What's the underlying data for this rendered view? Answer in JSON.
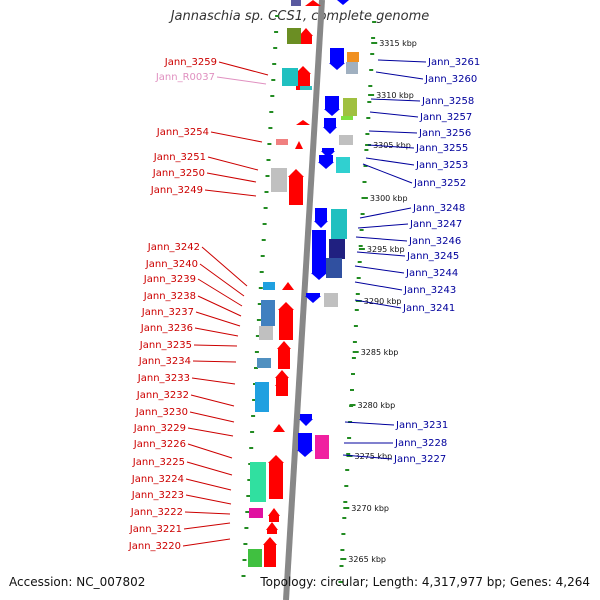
{
  "title": "Jannaschia sp. CCS1, complete genome",
  "footer": {
    "accession": "Accession: NC_007802",
    "summary": "Topology: circular; Length: 4,317,977 bp; Genes: 4,264"
  },
  "colors": {
    "left_label": "#cc0000",
    "right_label": "#00009c",
    "rna_label": "#e090c0",
    "forward_arrow": "#ff0000",
    "reverse_arrow": "#0000ff",
    "axis": "#888888",
    "tick": "#228b22"
  },
  "scale_labels": [
    "3315 kbp",
    "3310 kbp",
    "3305 kbp",
    "3300 kbp",
    "3295 kbp",
    "3290 kbp",
    "3285 kbp",
    "3280 kbp",
    "3275 kbp",
    "3270 kbp",
    "3265 kbp"
  ],
  "left_labels": [
    "Jann_3259",
    "Jann_R0037",
    "Jann_3254",
    "Jann_3251",
    "Jann_3250",
    "Jann_3249",
    "Jann_3242",
    "Jann_3240",
    "Jann_3239",
    "Jann_3238",
    "Jann_3237",
    "Jann_3236",
    "Jann_3235",
    "Jann_3234",
    "Jann_3233",
    "Jann_3232",
    "Jann_3230",
    "Jann_3229",
    "Jann_3226",
    "Jann_3225",
    "Jann_3224",
    "Jann_3223",
    "Jann_3222",
    "Jann_3221",
    "Jann_3220"
  ],
  "right_labels": [
    "Jann_3261",
    "Jann_3260",
    "Jann_3258",
    "Jann_3257",
    "Jann_3256",
    "Jann_3255",
    "Jann_3253",
    "Jann_3252",
    "Jann_3248",
    "Jann_3247",
    "Jann_3246",
    "Jann_3245",
    "Jann_3244",
    "Jann_3243",
    "Jann_3241",
    "Jann_3231",
    "Jann_3228",
    "Jann_3227"
  ]
}
